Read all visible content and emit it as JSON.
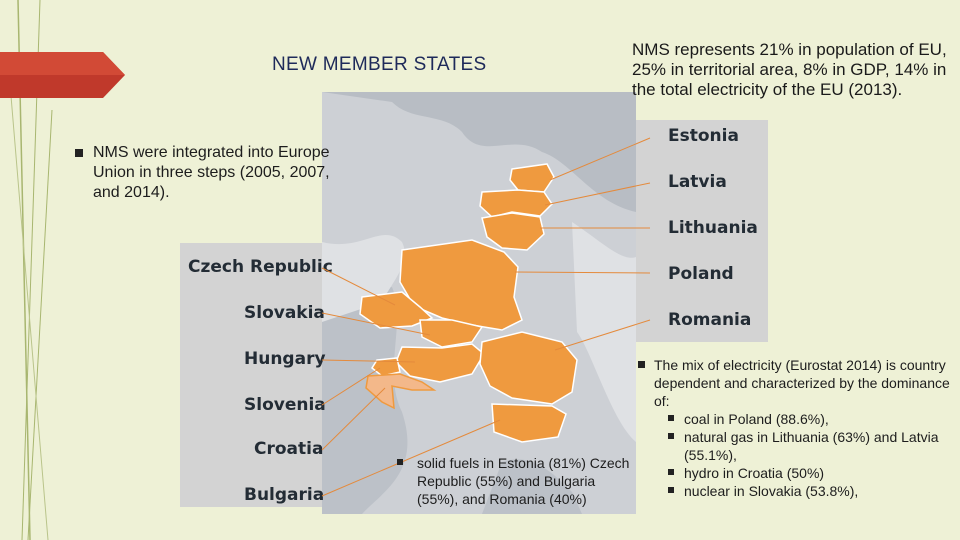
{
  "slide": {
    "title": "NEW MEMBER STATES",
    "stats_text": "NMS represents 21% in population of EU, 25% in territorial area, 8% in GDP, 14% in the total electricity of the EU (2013).",
    "steps_text": "NMS were integrated into Europe Union in three steps (2005, 2007, and 2014).",
    "fuels_text": "solid fuels in Estonia (81%) Czech Republic (55%) and Bulgaria (55%), and Romania (40%)",
    "mix_intro": "The mix of electricity (Eurostat 2014) is country dependent and characterized by the dominance of:",
    "mix_items": [
      "coal in Poland (88.6%),",
      "natural gas in Lithuania (63%) and Latvia (55.1%),",
      "hydro in Croatia (50%)",
      "nuclear in Slovakia (53.8%),"
    ]
  },
  "map_labels": {
    "left": [
      "Czech Republic",
      "Slovakia",
      "Hungary",
      "Slovenia",
      "Croatia",
      "Bulgaria"
    ],
    "right": [
      "Estonia",
      "Latvia",
      "Lithuania",
      "Poland",
      "Romania"
    ]
  },
  "colors": {
    "background": "#eef1d6",
    "accent_arrow": "#c0392b",
    "nms_fill": "#ef9a3f",
    "label_panel": "#d3d3d3"
  }
}
